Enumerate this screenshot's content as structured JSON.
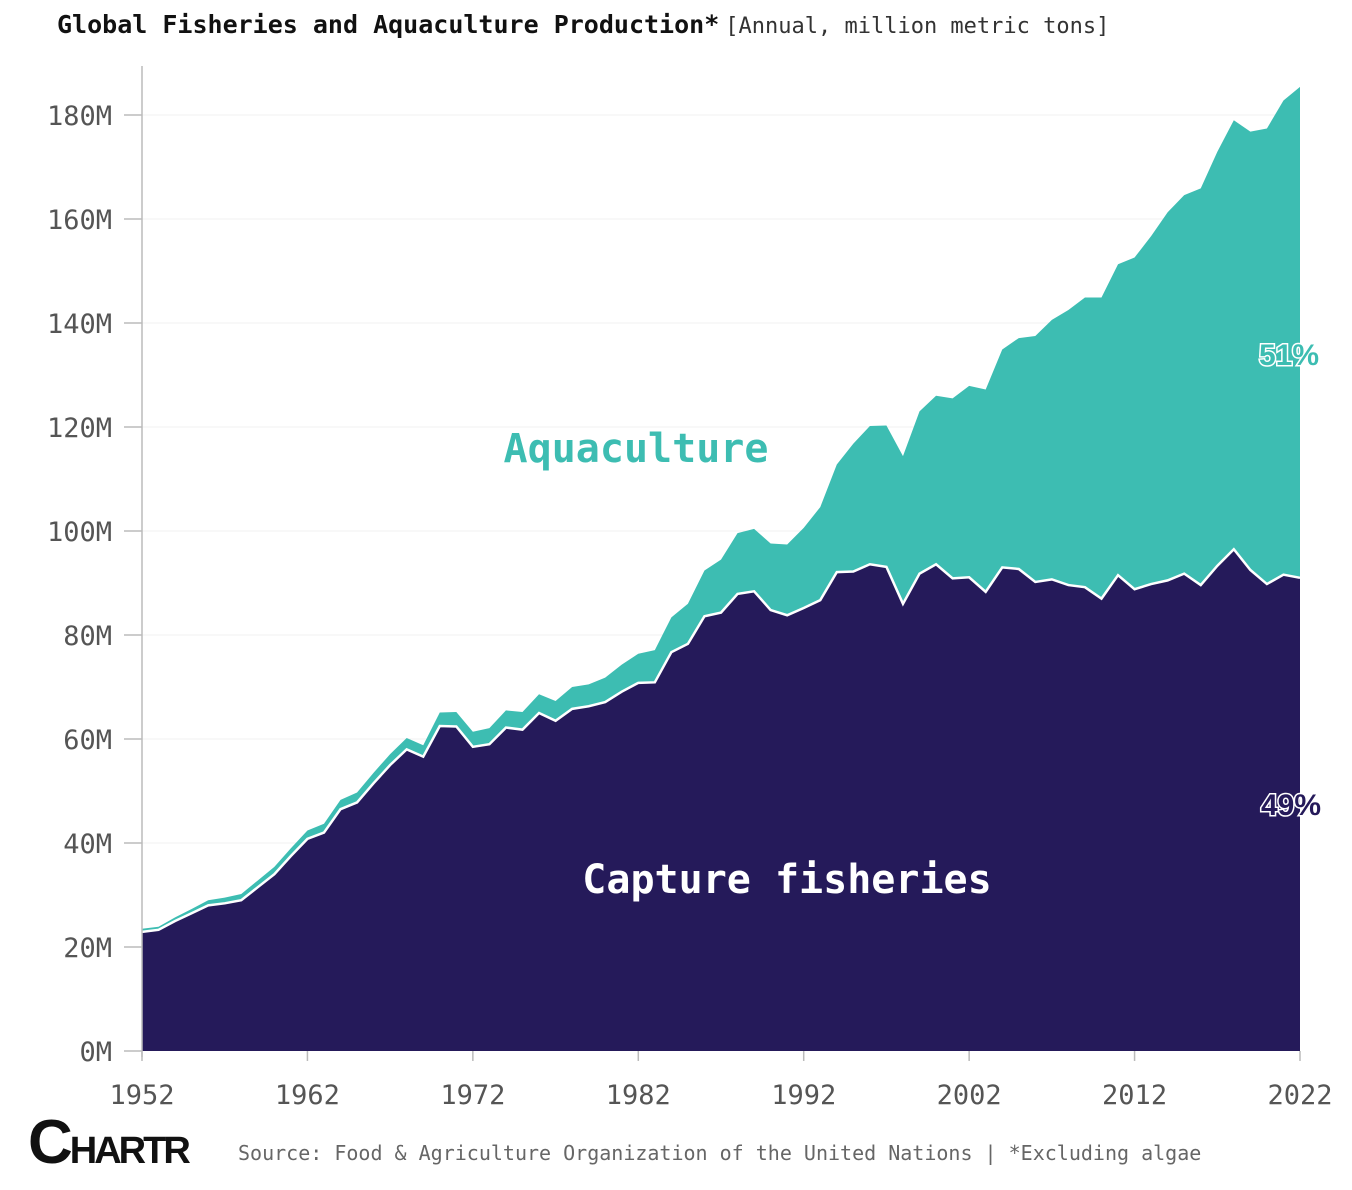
{
  "title": {
    "main": "Global Fisheries and Aquaculture Production*",
    "sub": "[Annual, million metric tons]"
  },
  "source": "Source: Food & Agriculture Organization of the United Nations | *Excluding algae",
  "logo": {
    "text": "CHARTR",
    "big_part": "C",
    "mid_part": "HAR",
    "end_part": "TR"
  },
  "colors": {
    "aquaculture": "#3DBDB2",
    "capture": "#251A5A",
    "axis": "#bbbbbb",
    "grid": "#f0f0f0"
  },
  "chart_data": {
    "type": "area",
    "stacked": true,
    "title": "Global Fisheries and Aquaculture Production*",
    "subtitle": "[Annual, million metric tons]",
    "xlabel": "",
    "ylabel": "",
    "xlim": [
      1952,
      2022
    ],
    "ylim": [
      0,
      190
    ],
    "x_ticks": [
      1952,
      1962,
      1972,
      1982,
      1992,
      2002,
      2012,
      2022
    ],
    "y_ticks": [
      0,
      20,
      40,
      60,
      80,
      100,
      120,
      140,
      160,
      180
    ],
    "y_tick_labels": [
      "0M",
      "20M",
      "40M",
      "60M",
      "80M",
      "100M",
      "120M",
      "140M",
      "160M",
      "180M"
    ],
    "x": [
      1952,
      1953,
      1954,
      1955,
      1956,
      1957,
      1958,
      1959,
      1960,
      1961,
      1962,
      1963,
      1964,
      1965,
      1966,
      1967,
      1968,
      1969,
      1970,
      1971,
      1972,
      1973,
      1974,
      1975,
      1976,
      1977,
      1978,
      1979,
      1980,
      1981,
      1982,
      1983,
      1984,
      1985,
      1986,
      1987,
      1988,
      1989,
      1990,
      1991,
      1992,
      1993,
      1994,
      1995,
      1996,
      1997,
      1998,
      1999,
      2000,
      2001,
      2002,
      2003,
      2004,
      2005,
      2006,
      2007,
      2008,
      2009,
      2010,
      2011,
      2012,
      2013,
      2014,
      2015,
      2016,
      2017,
      2018,
      2019,
      2020,
      2021,
      2022
    ],
    "series": [
      {
        "name": "Capture fisheries",
        "share_label": "49%",
        "values": [
          22.9,
          23.3,
          25.0,
          26.5,
          28.0,
          28.4,
          29.0,
          31.5,
          34.0,
          37.5,
          40.8,
          42.0,
          46.5,
          47.8,
          51.5,
          55.0,
          58.0,
          56.6,
          62.5,
          62.4,
          58.5,
          59.0,
          62.2,
          61.8,
          65.0,
          63.5,
          65.8,
          66.3,
          67.1,
          69.1,
          70.8,
          70.9,
          76.7,
          78.3,
          83.6,
          84.3,
          87.9,
          88.4,
          84.8,
          83.8,
          85.2,
          86.7,
          92.1,
          92.2,
          93.6,
          93.1,
          86.0,
          91.8,
          93.6,
          90.9,
          91.1,
          88.3,
          93.0,
          92.7,
          90.2,
          90.7,
          89.6,
          89.2,
          87.0,
          91.5,
          88.8,
          89.8,
          90.5,
          91.8,
          89.6,
          93.3,
          96.5,
          92.5,
          89.8,
          91.6,
          91.0
        ]
      },
      {
        "name": "Aquaculture",
        "share_label": "51%",
        "values": [
          0.6,
          0.6,
          0.7,
          0.8,
          1.0,
          1.1,
          1.2,
          1.3,
          1.4,
          1.5,
          1.6,
          1.7,
          1.8,
          1.9,
          2.0,
          2.1,
          2.2,
          2.2,
          2.6,
          2.8,
          2.9,
          3.1,
          3.3,
          3.4,
          3.6,
          3.8,
          4.2,
          4.2,
          4.7,
          5.2,
          5.6,
          6.2,
          6.7,
          7.7,
          8.8,
          10.2,
          11.7,
          12.0,
          12.8,
          13.6,
          15.4,
          17.9,
          20.7,
          24.6,
          26.6,
          27.2,
          28.4,
          31.2,
          32.4,
          34.6,
          36.8,
          38.9,
          41.9,
          44.4,
          47.3,
          49.9,
          52.9,
          55.7,
          57.9,
          59.8,
          63.8,
          66.9,
          70.8,
          72.8,
          76.3,
          79.6,
          82.5,
          84.3,
          87.6,
          91.2,
          94.4
        ]
      }
    ],
    "annotations": [
      {
        "text": "Aquaculture",
        "series": "Aquaculture"
      },
      {
        "text": "Capture fisheries",
        "series": "Capture fisheries"
      }
    ]
  }
}
